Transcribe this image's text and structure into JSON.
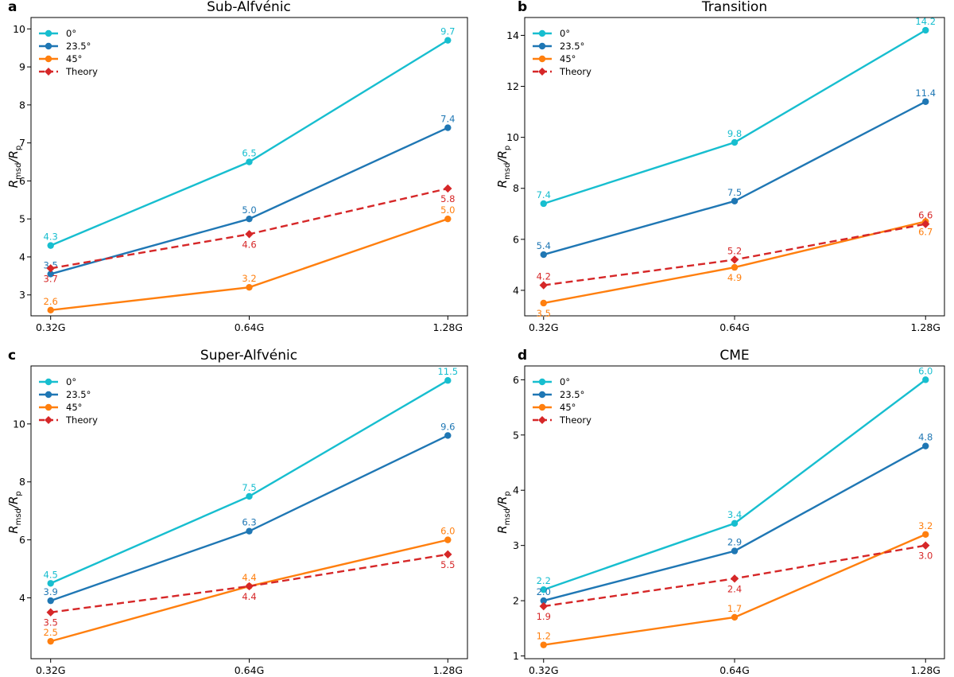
{
  "chart_data": [
    {
      "panel": "a",
      "type": "line",
      "title": "Sub-Alfvénic",
      "xlabel": "",
      "ylabel_main": "R",
      "ylabel_sub1": "msd",
      "ylabel_sep": "/R",
      "ylabel_sub2": "p",
      "categories": [
        "0.32G",
        "0.64G",
        "1.28G"
      ],
      "ylim": [
        2.45,
        10.3
      ],
      "yticks": [
        3,
        4,
        5,
        6,
        7,
        8,
        9,
        10
      ],
      "grid": false,
      "legend": "top-left",
      "series": [
        {
          "name": "0°",
          "color": "#17becf",
          "marker": "circle",
          "dashed": false,
          "values": [
            4.3,
            6.5,
            9.7
          ],
          "labels": [
            "4.3",
            "6.5",
            "9.7"
          ],
          "label_pos": [
            "above",
            "above",
            "above"
          ]
        },
        {
          "name": "23.5°",
          "color": "#1f77b4",
          "marker": "circle",
          "dashed": false,
          "values": [
            3.55,
            5.0,
            7.4
          ],
          "labels": [
            "3.5",
            "5.0",
            "7.4"
          ],
          "label_pos": [
            "above",
            "above",
            "above"
          ]
        },
        {
          "name": "45°",
          "color": "#ff7f0e",
          "marker": "circle",
          "dashed": false,
          "values": [
            2.6,
            3.2,
            5.0
          ],
          "labels": [
            "2.6",
            "3.2",
            "5.0"
          ],
          "label_pos": [
            "above",
            "above",
            "above"
          ]
        },
        {
          "name": "Theory",
          "color": "#d62728",
          "marker": "diamond",
          "dashed": true,
          "values": [
            3.7,
            4.6,
            5.8
          ],
          "labels": [
            "3.7",
            "4.6",
            "5.8"
          ],
          "label_pos": [
            "below",
            "below",
            "below"
          ]
        }
      ]
    },
    {
      "panel": "b",
      "type": "line",
      "title": "Transition",
      "xlabel": "",
      "ylabel_main": "R",
      "ylabel_sub1": "msd",
      "ylabel_sep": "/R",
      "ylabel_sub2": "p",
      "categories": [
        "0.32G",
        "0.64G",
        "1.28G"
      ],
      "ylim": [
        3.0,
        14.7
      ],
      "yticks": [
        4,
        6,
        8,
        10,
        12,
        14
      ],
      "grid": false,
      "legend": "top-left",
      "series": [
        {
          "name": "0°",
          "color": "#17becf",
          "marker": "circle",
          "dashed": false,
          "values": [
            7.4,
            9.8,
            14.2
          ],
          "labels": [
            "7.4",
            "9.8",
            "14.2"
          ],
          "label_pos": [
            "above",
            "above",
            "above"
          ]
        },
        {
          "name": "23.5°",
          "color": "#1f77b4",
          "marker": "circle",
          "dashed": false,
          "values": [
            5.4,
            7.5,
            11.4
          ],
          "labels": [
            "5.4",
            "7.5",
            "11.4"
          ],
          "label_pos": [
            "above",
            "above",
            "above"
          ]
        },
        {
          "name": "45°",
          "color": "#ff7f0e",
          "marker": "circle",
          "dashed": false,
          "values": [
            3.5,
            4.9,
            6.7
          ],
          "labels": [
            "3.5",
            "4.9",
            "6.7"
          ],
          "label_pos": [
            "below",
            "below",
            "below"
          ]
        },
        {
          "name": "Theory",
          "color": "#d62728",
          "marker": "diamond",
          "dashed": true,
          "values": [
            4.2,
            5.2,
            6.6
          ],
          "labels": [
            "4.2",
            "5.2",
            "6.6"
          ],
          "label_pos": [
            "above",
            "above",
            "above"
          ]
        }
      ]
    },
    {
      "panel": "c",
      "type": "line",
      "title": "Super-Alfvénic",
      "xlabel": "",
      "ylabel_main": "R",
      "ylabel_sub1": "msd",
      "ylabel_sep": "/R",
      "ylabel_sub2": "p",
      "categories": [
        "0.32G",
        "0.64G",
        "1.28G"
      ],
      "ylim": [
        1.9,
        12.0
      ],
      "yticks": [
        4,
        6,
        8,
        10
      ],
      "grid": false,
      "legend": "top-left",
      "series": [
        {
          "name": "0°",
          "color": "#17becf",
          "marker": "circle",
          "dashed": false,
          "values": [
            4.5,
            7.5,
            11.5
          ],
          "labels": [
            "4.5",
            "7.5",
            "11.5"
          ],
          "label_pos": [
            "above",
            "above",
            "above"
          ]
        },
        {
          "name": "23.5°",
          "color": "#1f77b4",
          "marker": "circle",
          "dashed": false,
          "values": [
            3.9,
            6.3,
            9.6
          ],
          "labels": [
            "3.9",
            "6.3",
            "9.6"
          ],
          "label_pos": [
            "above",
            "above",
            "above"
          ]
        },
        {
          "name": "45°",
          "color": "#ff7f0e",
          "marker": "circle",
          "dashed": false,
          "values": [
            2.5,
            4.4,
            6.0
          ],
          "labels": [
            "2.5",
            "4.4",
            "6.0"
          ],
          "label_pos": [
            "above",
            "above",
            "above"
          ]
        },
        {
          "name": "Theory",
          "color": "#d62728",
          "marker": "diamond",
          "dashed": true,
          "values": [
            3.5,
            4.4,
            5.5
          ],
          "labels": [
            "3.5",
            "4.4",
            "5.5"
          ],
          "label_pos": [
            "below",
            "below",
            "below"
          ]
        }
      ]
    },
    {
      "panel": "d",
      "type": "line",
      "title": "CME",
      "xlabel": "",
      "ylabel_main": "R",
      "ylabel_sub1": "msd",
      "ylabel_sep": "/R",
      "ylabel_sub2": "p",
      "categories": [
        "0.32G",
        "0.64G",
        "1.28G"
      ],
      "ylim": [
        0.95,
        6.25
      ],
      "yticks": [
        1,
        2,
        3,
        4,
        5,
        6
      ],
      "grid": false,
      "legend": "top-left",
      "series": [
        {
          "name": "0°",
          "color": "#17becf",
          "marker": "circle",
          "dashed": false,
          "values": [
            2.2,
            3.4,
            6.0
          ],
          "labels": [
            "2.2",
            "3.4",
            "6.0"
          ],
          "label_pos": [
            "above",
            "above",
            "above"
          ]
        },
        {
          "name": "23.5°",
          "color": "#1f77b4",
          "marker": "circle",
          "dashed": false,
          "values": [
            2.0,
            2.9,
            4.8
          ],
          "labels": [
            "2.0",
            "2.9",
            "4.8"
          ],
          "label_pos": [
            "above",
            "above",
            "above"
          ]
        },
        {
          "name": "45°",
          "color": "#ff7f0e",
          "marker": "circle",
          "dashed": false,
          "values": [
            1.2,
            1.7,
            3.2
          ],
          "labels": [
            "1.2",
            "1.7",
            "3.2"
          ],
          "label_pos": [
            "above",
            "above",
            "above"
          ]
        },
        {
          "name": "Theory",
          "color": "#d62728",
          "marker": "diamond",
          "dashed": true,
          "values": [
            1.9,
            2.4,
            3.0
          ],
          "labels": [
            "1.9",
            "2.4",
            "3.0"
          ],
          "label_pos": [
            "below",
            "below",
            "below"
          ]
        }
      ]
    }
  ]
}
